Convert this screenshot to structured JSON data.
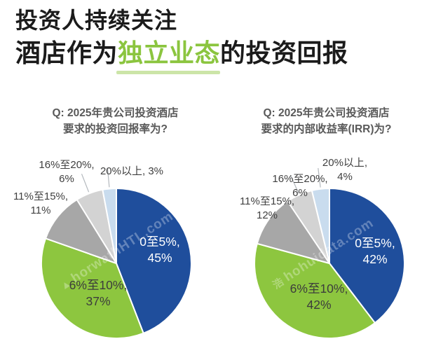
{
  "title": {
    "line1": "投资人持续关注",
    "line2_pre": "酒店作为",
    "line2_highlight": "独立业态",
    "line2_post": "的投资回报",
    "highlight_color": "#8bc53f"
  },
  "watermark": {
    "left_logo": "▲",
    "left": "horwathHTL.com",
    "right_logo": "浩",
    "right": "hohuidata.com"
  },
  "colors": {
    "blue": "#1f4e9c",
    "green": "#8dc63f",
    "gray": "#a7a7a7",
    "light_gray": "#d3d3d3",
    "pale_blue": "#c9dcee",
    "text_dark": "#3f3f3f",
    "question_gray": "#595959"
  },
  "chart_data": [
    {
      "type": "pie",
      "question_line1": "Q: 2025年贵公司投资酒店",
      "question_line2": "要求的投资回报率为?",
      "categories": [
        "0至5%",
        "6%至10%",
        "11%至15%",
        "16%至20%",
        "20%以上"
      ],
      "values": [
        45,
        37,
        11,
        6,
        3
      ],
      "unit": "%",
      "colors": [
        "#1f4e9c",
        "#8dc63f",
        "#a7a7a7",
        "#d3d3d3",
        "#c9dcee"
      ],
      "legend_position": "none",
      "grid": false,
      "inner_labels": [
        {
          "line1": "0至5%,",
          "line2": "45%"
        },
        {
          "line1": "6%至10%,",
          "line2": "37%"
        }
      ],
      "outer_labels": [
        {
          "line1": "16%至20%,",
          "line2": "6%"
        },
        {
          "line1": "20%以上, 3%",
          "line2": ""
        },
        {
          "line1": "11%至15%,",
          "line2": "11%"
        }
      ]
    },
    {
      "type": "pie",
      "question_line1": "Q: 2025年贵公司投资酒店",
      "question_line2": "要求的内部收益率(IRR)为?",
      "categories": [
        "0至5%",
        "6%至10%",
        "11%至15%",
        "16%至20%",
        "20%以上"
      ],
      "values": [
        42,
        42,
        12,
        6,
        4
      ],
      "unit": "%",
      "colors": [
        "#1f4e9c",
        "#8dc63f",
        "#a7a7a7",
        "#d3d3d3",
        "#c9dcee"
      ],
      "legend_position": "none",
      "grid": false,
      "inner_labels": [
        {
          "line1": "0至5%,",
          "line2": "42%"
        },
        {
          "line1": "6%至10%,",
          "line2": "42%"
        }
      ],
      "outer_labels": [
        {
          "line1": "20%以上,",
          "line2": "4%"
        },
        {
          "line1": "16%至20%,",
          "line2": "6%"
        },
        {
          "line1": "11%至15%,",
          "line2": "12%"
        }
      ]
    }
  ]
}
